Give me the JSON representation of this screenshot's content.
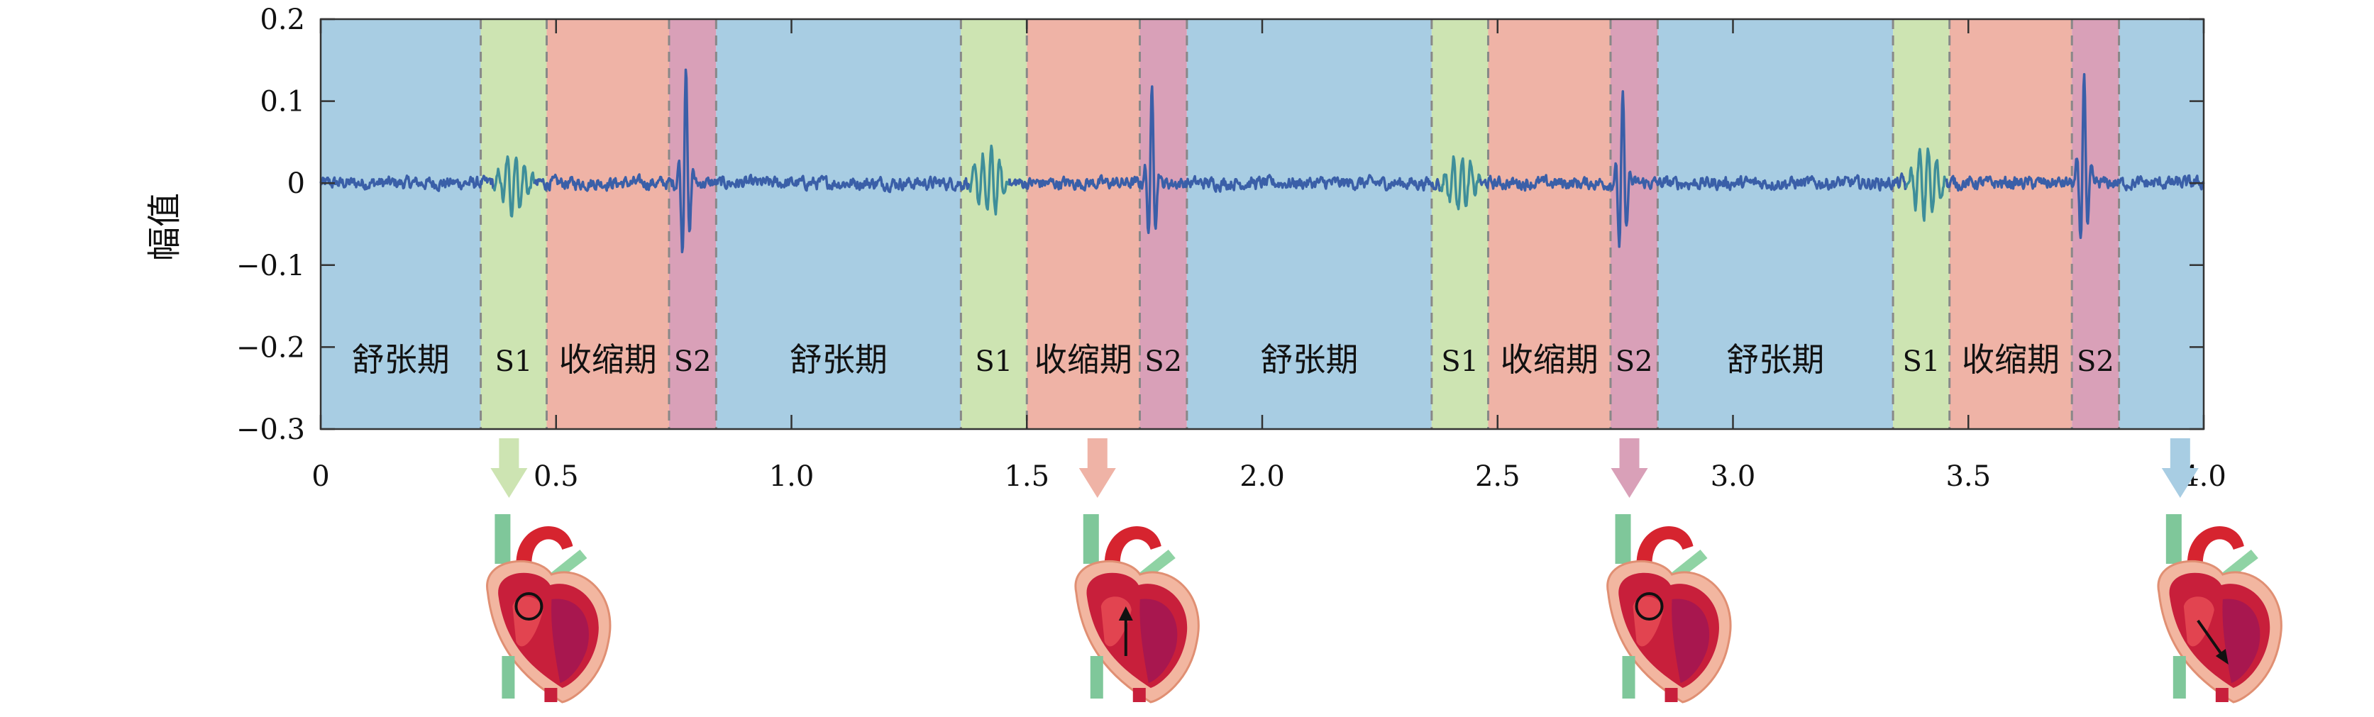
{
  "chart_data": {
    "type": "line",
    "title": "",
    "xlabel": "",
    "ylabel": "幅值",
    "xlim": [
      0,
      4.0
    ],
    "ylim": [
      -0.3,
      0.2
    ],
    "x_ticks": [
      "0",
      "0.5",
      "1.0",
      "1.5",
      "2.0",
      "2.5",
      "3.0",
      "3.5",
      "4.0"
    ],
    "y_ticks": [
      "0.2",
      "0.1",
      "0",
      "−0.1",
      "−0.2",
      "−0.3"
    ],
    "grid": false,
    "legend": "none",
    "colors": {
      "diastole": "#a8cde3",
      "s1": "#cde4b2",
      "systole": "#efb3a6",
      "s2": "#d9a0b8",
      "signal": "#3a5fa8",
      "signal_s1": "#3e8e9a",
      "boundary": "#888888"
    },
    "phases": [
      {
        "label": "舒张期",
        "type": "diastole",
        "start": 0.0,
        "end": 0.34
      },
      {
        "label": "S1",
        "type": "s1",
        "start": 0.34,
        "end": 0.48
      },
      {
        "label": "收缩期",
        "type": "systole",
        "start": 0.48,
        "end": 0.74
      },
      {
        "label": "S2",
        "type": "s2",
        "start": 0.74,
        "end": 0.84
      },
      {
        "label": "舒张期",
        "type": "diastole",
        "start": 0.84,
        "end": 1.36
      },
      {
        "label": "S1",
        "type": "s1",
        "start": 1.36,
        "end": 1.5
      },
      {
        "label": "收缩期",
        "type": "systole",
        "start": 1.5,
        "end": 1.74
      },
      {
        "label": "S2",
        "type": "s2",
        "start": 1.74,
        "end": 1.84
      },
      {
        "label": "舒张期",
        "type": "diastole",
        "start": 1.84,
        "end": 2.36
      },
      {
        "label": "S1",
        "type": "s1",
        "start": 2.36,
        "end": 2.48
      },
      {
        "label": "收缩期",
        "type": "systole",
        "start": 2.48,
        "end": 2.74
      },
      {
        "label": "S2",
        "type": "s2",
        "start": 2.74,
        "end": 2.84
      },
      {
        "label": "舒张期",
        "type": "diastole",
        "start": 2.84,
        "end": 3.34
      },
      {
        "label": "S1",
        "type": "s1",
        "start": 3.34,
        "end": 3.46
      },
      {
        "label": "收缩期",
        "type": "systole",
        "start": 3.46,
        "end": 3.72
      },
      {
        "label": "S2",
        "type": "s2",
        "start": 3.72,
        "end": 3.82
      },
      {
        "label": "",
        "type": "diastole",
        "start": 3.82,
        "end": 4.0
      }
    ],
    "s1_events": [
      {
        "t": 0.41,
        "peak": 0.03,
        "trough": -0.04
      },
      {
        "t": 1.42,
        "peak": 0.035,
        "trough": -0.045
      },
      {
        "t": 2.42,
        "peak": 0.03,
        "trough": -0.04
      },
      {
        "t": 3.41,
        "peak": 0.045,
        "trough": -0.045
      }
    ],
    "s2_events": [
      {
        "t": 0.775,
        "peak": 0.15,
        "trough": -0.12
      },
      {
        "t": 1.765,
        "peak": 0.115,
        "trough": -0.085
      },
      {
        "t": 2.765,
        "peak": 0.105,
        "trough": -0.11
      },
      {
        "t": 3.745,
        "peak": 0.14,
        "trough": -0.1
      }
    ],
    "heart_illustrations": [
      {
        "x": 0.4,
        "phase": "s1",
        "marker": "circle"
      },
      {
        "x": 1.65,
        "phase": "systole",
        "marker": "arrow-up"
      },
      {
        "x": 2.78,
        "phase": "s2",
        "marker": "circle"
      },
      {
        "x": 3.95,
        "phase": "diastole",
        "marker": "arrow-down-right"
      }
    ]
  }
}
